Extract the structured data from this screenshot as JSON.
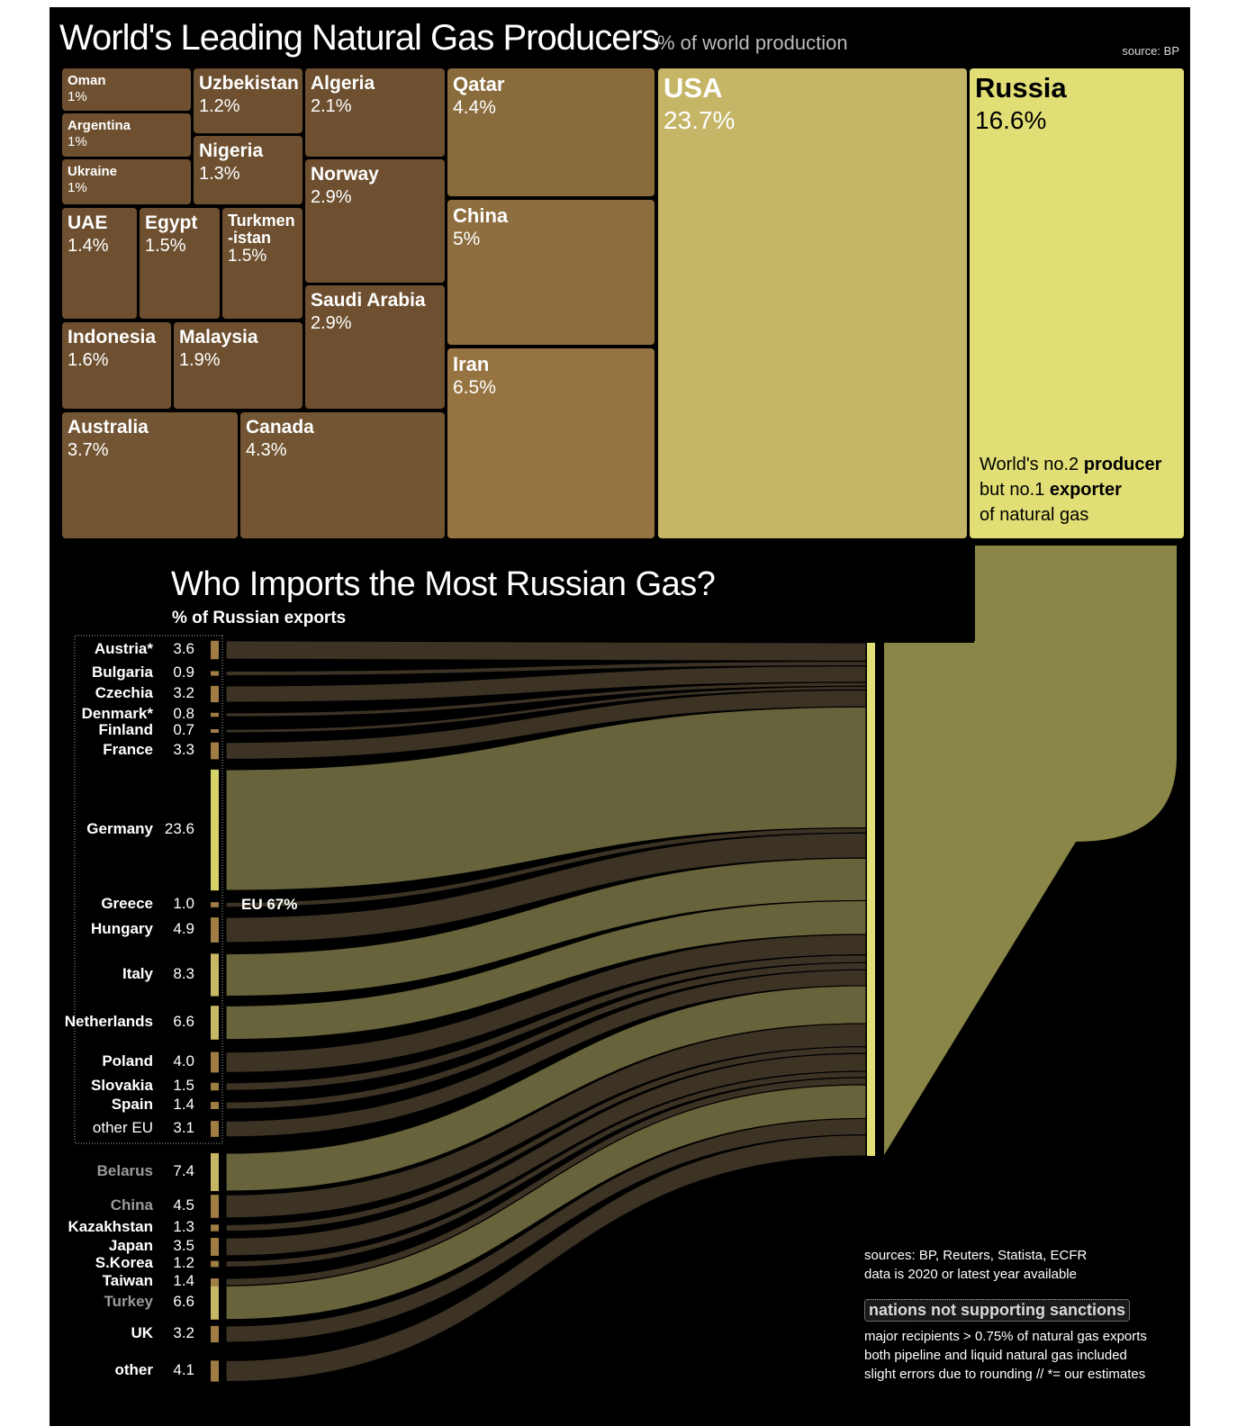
{
  "producers": {
    "title": "World's Leading Natural Gas Producers",
    "subtitle": "% of world production",
    "source": "source: BP",
    "russia_note": {
      "a": "World's no.2 ",
      "b": "producer",
      "c": "but no.1 ",
      "d": "exporter",
      "e": "of natural gas"
    }
  },
  "imports": {
    "title": "Who Imports the Most Russian Gas?",
    "subtitle": "% of Russian exports",
    "eu_label": "EU 67%"
  },
  "notes": {
    "sources": "sources: BP, Reuters, Statista, ECFR",
    "data_year": "data is 2020 or latest year available",
    "legend": "nations not supporting sanctions",
    "line1": "major recipients > 0.75% of natural gas exports",
    "line2": "both pipeline and liquid natural gas included",
    "line3": "slight errors due to rounding // *= our estimates"
  },
  "colors": {
    "russia": "#e0de74",
    "usa": "#c5b566",
    "mid": "#8a6d3c",
    "low": "#6b4f2e",
    "flow": "#67633a",
    "flow_dark": "#3c3325"
  },
  "chart_data": [
    {
      "type": "treemap",
      "title": "World's Leading Natural Gas Producers",
      "subtitle": "% of world production",
      "items": [
        {
          "name": "Oman",
          "value": 1,
          "label": "1%"
        },
        {
          "name": "Argentina",
          "value": 1,
          "label": "1%"
        },
        {
          "name": "Ukraine",
          "value": 1,
          "label": "1%"
        },
        {
          "name": "Uzbekistan",
          "value": 1.2,
          "label": "1.2%"
        },
        {
          "name": "Nigeria",
          "value": 1.3,
          "label": "1.3%"
        },
        {
          "name": "UAE",
          "value": 1.4,
          "label": "1.4%"
        },
        {
          "name": "Egypt",
          "value": 1.5,
          "label": "1.5%"
        },
        {
          "name": "Turkmen\n-istan",
          "value": 1.5,
          "label": "1.5%"
        },
        {
          "name": "Indonesia",
          "value": 1.6,
          "label": "1.6%"
        },
        {
          "name": "Malaysia",
          "value": 1.9,
          "label": "1.9%"
        },
        {
          "name": "Algeria",
          "value": 2.1,
          "label": "2.1%"
        },
        {
          "name": "Norway",
          "value": 2.9,
          "label": "2.9%"
        },
        {
          "name": "Saudi Arabia",
          "value": 2.9,
          "label": "2.9%"
        },
        {
          "name": "Australia",
          "value": 3.7,
          "label": "3.7%"
        },
        {
          "name": "Canada",
          "value": 4.3,
          "label": "4.3%"
        },
        {
          "name": "Qatar",
          "value": 4.4,
          "label": "4.4%"
        },
        {
          "name": "China",
          "value": 5,
          "label": "5%"
        },
        {
          "name": "Iran",
          "value": 6.5,
          "label": "6.5%"
        },
        {
          "name": "USA",
          "value": 23.7,
          "label": "23.7%"
        },
        {
          "name": "Russia",
          "value": 16.6,
          "label": "16.6%"
        }
      ]
    },
    {
      "type": "sankey",
      "title": "Who Imports the Most Russian Gas?",
      "subtitle": "% of Russian exports",
      "group_label": "EU 67%",
      "items": [
        {
          "name": "Austria*",
          "value": 3.6,
          "label": "3.6",
          "eu": true
        },
        {
          "name": "Bulgaria",
          "value": 0.9,
          "label": "0.9",
          "eu": true
        },
        {
          "name": "Czechia",
          "value": 3.2,
          "label": "3.2",
          "eu": true
        },
        {
          "name": "Denmark*",
          "value": 0.8,
          "label": "0.8",
          "eu": true
        },
        {
          "name": "Finland",
          "value": 0.7,
          "label": "0.7",
          "eu": true
        },
        {
          "name": "France",
          "value": 3.3,
          "label": "3.3",
          "eu": true
        },
        {
          "name": "Germany",
          "value": 23.6,
          "label": "23.6",
          "eu": true
        },
        {
          "name": "Greece",
          "value": 1.0,
          "label": "1.0",
          "eu": true
        },
        {
          "name": "Hungary",
          "value": 4.9,
          "label": "4.9",
          "eu": true
        },
        {
          "name": "Italy",
          "value": 8.3,
          "label": "8.3",
          "eu": true
        },
        {
          "name": "Netherlands",
          "value": 6.6,
          "label": "6.6",
          "eu": true
        },
        {
          "name": "Poland",
          "value": 4.0,
          "label": "4.0",
          "eu": true
        },
        {
          "name": "Slovakia",
          "value": 1.5,
          "label": "1.5",
          "eu": true
        },
        {
          "name": "Spain",
          "value": 1.4,
          "label": "1.4",
          "eu": true
        },
        {
          "name": "other EU",
          "value": 3.1,
          "label": "3.1",
          "eu": true
        },
        {
          "name": "Belarus",
          "value": 7.4,
          "label": "7.4",
          "eu": false,
          "no_sanctions": true
        },
        {
          "name": "China",
          "value": 4.5,
          "label": "4.5",
          "eu": false,
          "no_sanctions": true
        },
        {
          "name": "Kazakhstan",
          "value": 1.3,
          "label": "1.3",
          "eu": false
        },
        {
          "name": "Japan",
          "value": 3.5,
          "label": "3.5",
          "eu": false
        },
        {
          "name": "S.Korea",
          "value": 1.2,
          "label": "1.2",
          "eu": false
        },
        {
          "name": "Taiwan",
          "value": 1.4,
          "label": "1.4",
          "eu": false
        },
        {
          "name": "Turkey",
          "value": 6.6,
          "label": "6.6",
          "eu": false,
          "no_sanctions": true
        },
        {
          "name": "UK",
          "value": 3.2,
          "label": "3.2",
          "eu": false
        },
        {
          "name": "other",
          "value": 4.1,
          "label": "4.1",
          "eu": false
        }
      ]
    }
  ]
}
